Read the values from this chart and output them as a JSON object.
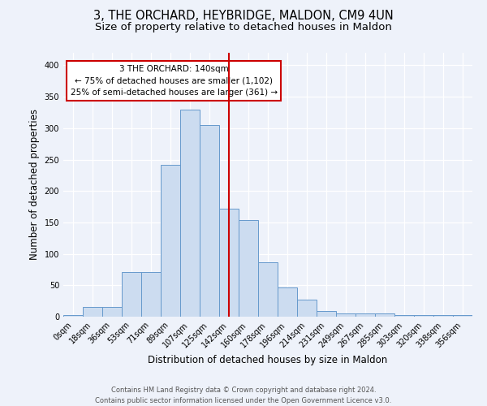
{
  "title": "3, THE ORCHARD, HEYBRIDGE, MALDON, CM9 4UN",
  "subtitle": "Size of property relative to detached houses in Maldon",
  "xlabel": "Distribution of detached houses by size in Maldon",
  "ylabel": "Number of detached properties",
  "bin_labels": [
    "0sqm",
    "18sqm",
    "36sqm",
    "53sqm",
    "71sqm",
    "89sqm",
    "107sqm",
    "125sqm",
    "142sqm",
    "160sqm",
    "178sqm",
    "196sqm",
    "214sqm",
    "231sqm",
    "249sqm",
    "267sqm",
    "285sqm",
    "303sqm",
    "320sqm",
    "338sqm",
    "356sqm"
  ],
  "bar_heights": [
    3,
    15,
    15,
    71,
    71,
    242,
    330,
    305,
    172,
    154,
    87,
    46,
    27,
    9,
    5,
    5,
    5,
    2,
    2,
    2,
    3
  ],
  "bar_color": "#ccdcf0",
  "bar_edge_color": "#6699cc",
  "red_line_x": 8.0,
  "red_line_color": "#cc0000",
  "annotation_text": "3 THE ORCHARD: 140sqm\n← 75% of detached houses are smaller (1,102)\n25% of semi-detached houses are larger (361) →",
  "annotation_box_color": "#ffffff",
  "annotation_box_edge_color": "#cc0000",
  "footer_line1": "Contains HM Land Registry data © Crown copyright and database right 2024.",
  "footer_line2": "Contains public sector information licensed under the Open Government Licence v3.0.",
  "background_color": "#eef2fa",
  "ylim": [
    0,
    420
  ],
  "title_fontsize": 10.5,
  "subtitle_fontsize": 9.5,
  "axis_label_fontsize": 8.5,
  "tick_fontsize": 7,
  "footer_fontsize": 6
}
